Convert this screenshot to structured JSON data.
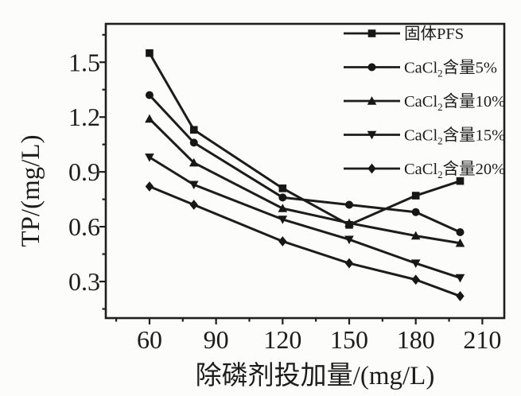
{
  "figure": {
    "background_color": "#fcfcfa",
    "ink_color": "#1c1c1c"
  },
  "chart_data": {
    "type": "line",
    "title": "",
    "xlabel": "除磷剂投加量/(mg/L)",
    "ylabel": "TP/(mg/L)",
    "xlim": [
      40.3,
      219.9
    ],
    "ylim": [
      0.1,
      1.71
    ],
    "x_ticks": [
      60,
      90,
      120,
      150,
      180,
      210
    ],
    "x_minor_ticks": [
      45,
      75,
      105,
      135,
      165,
      195
    ],
    "y_ticks": [
      0.3,
      0.6,
      0.9,
      1.2,
      1.5
    ],
    "y_minor_ticks": [
      0.15,
      0.45,
      0.75,
      1.05,
      1.35,
      1.65
    ],
    "grid": false,
    "legend_position": "top-right-inside",
    "x": [
      60,
      80,
      120,
      150,
      180,
      200
    ],
    "series": [
      {
        "name": "固体PFS",
        "label_parts": {
          "prefix": "固体PFS",
          "sub": "",
          "suffix": ""
        },
        "marker": "square",
        "values": [
          1.55,
          1.13,
          0.81,
          0.61,
          0.77,
          0.85
        ]
      },
      {
        "name": "CaCl2含量5%",
        "label_parts": {
          "prefix": "CaCl",
          "sub": "2",
          "suffix": "含量5%"
        },
        "marker": "circle",
        "values": [
          1.32,
          1.06,
          0.76,
          0.72,
          0.68,
          0.57
        ]
      },
      {
        "name": "CaCl2含量10%",
        "label_parts": {
          "prefix": "CaCl",
          "sub": "2",
          "suffix": "含量10%"
        },
        "marker": "triangle-up",
        "values": [
          1.19,
          0.95,
          0.7,
          0.62,
          0.55,
          0.51
        ]
      },
      {
        "name": "CaCl2含量15%",
        "label_parts": {
          "prefix": "CaCl",
          "sub": "2",
          "suffix": "含量15%"
        },
        "marker": "triangle-down",
        "values": [
          0.98,
          0.83,
          0.64,
          0.53,
          0.4,
          0.32
        ]
      },
      {
        "name": "CaCl2含量20%",
        "label_parts": {
          "prefix": "CaCl",
          "sub": "2",
          "suffix": "含量20%"
        },
        "marker": "diamond",
        "values": [
          0.82,
          0.72,
          0.52,
          0.4,
          0.31,
          0.22
        ]
      }
    ]
  }
}
